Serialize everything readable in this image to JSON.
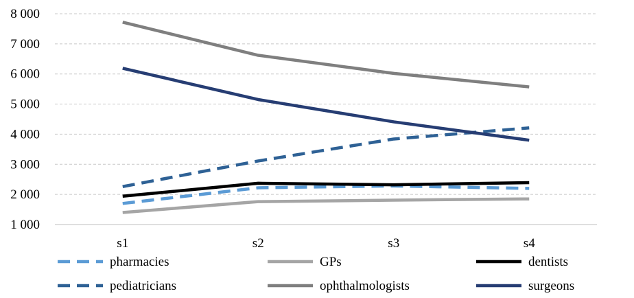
{
  "chart_data": {
    "type": "line",
    "categories": [
      "s1",
      "s2",
      "s3",
      "s4"
    ],
    "ylim": [
      1000,
      8000
    ],
    "yticks": [
      1000,
      2000,
      3000,
      4000,
      5000,
      6000,
      7000,
      8000
    ],
    "ytick_labels": [
      "1 000",
      "2 000",
      "3 000",
      "4 000",
      "5 000",
      "6 000",
      "7 000",
      "8 000"
    ],
    "grid": true,
    "legend_position": "bottom",
    "series": [
      {
        "name": "pharmacies",
        "values": [
          1700,
          2220,
          2280,
          2200
        ],
        "color": "#5b9bd5",
        "dash": "dashed"
      },
      {
        "name": "GPs",
        "values": [
          1400,
          1760,
          1810,
          1850
        ],
        "color": "#a5a5a5",
        "dash": "solid"
      },
      {
        "name": "dentists",
        "values": [
          1940,
          2370,
          2320,
          2390
        ],
        "color": "#000000",
        "dash": "solid"
      },
      {
        "name": "pediatricians",
        "values": [
          2260,
          3110,
          3840,
          4210
        ],
        "color": "#2e6195",
        "dash": "dashed"
      },
      {
        "name": "ophthalmologists",
        "values": [
          7720,
          6620,
          6020,
          5570
        ],
        "color": "#7f7f7f",
        "dash": "solid"
      },
      {
        "name": "surgeons",
        "values": [
          6190,
          5150,
          4410,
          3800
        ],
        "color": "#263d73",
        "dash": "solid"
      }
    ]
  }
}
